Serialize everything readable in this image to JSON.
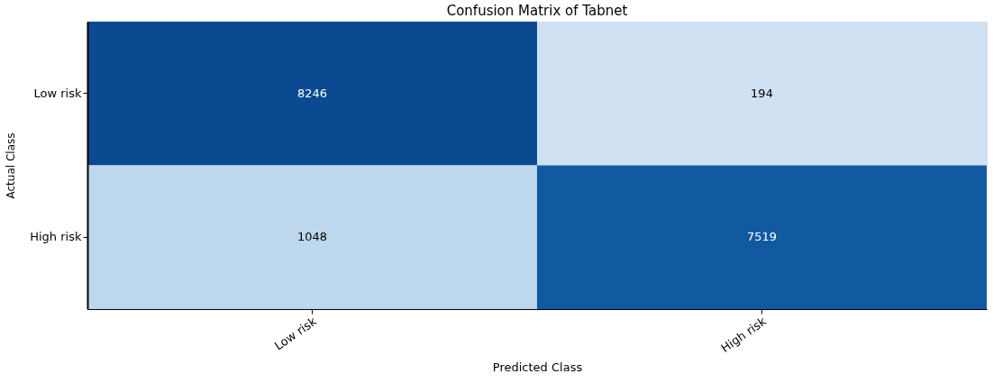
{
  "chart_data": {
    "type": "heatmap",
    "title": "Confusion Matrix of Tabnet",
    "xlabel": "Predicted Class",
    "ylabel": "Actual Class",
    "categories": [
      "Low risk",
      "High risk"
    ],
    "y_categories": [
      "Low risk",
      "High risk"
    ],
    "cells": [
      [
        8246,
        194
      ],
      [
        1048,
        7519
      ]
    ],
    "data_labels": true
  }
}
